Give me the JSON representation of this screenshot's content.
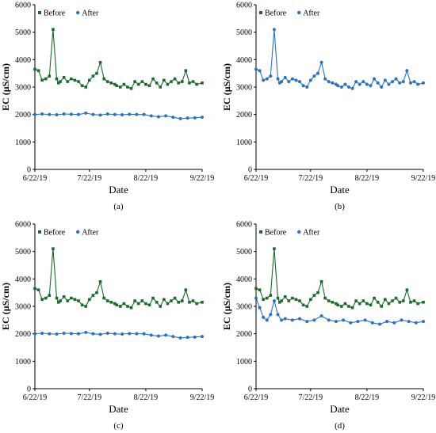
{
  "chart_data": [
    {
      "panel_label": "(a)",
      "type": "line",
      "xlabel": "Date",
      "ylabel": "EC (µS/cm)",
      "ylim": [
        0,
        6000
      ],
      "yticks": [
        0,
        1000,
        2000,
        3000,
        4000,
        5000,
        6000
      ],
      "xticks": [
        "6/22/19",
        "7/22/19",
        "8/22/19",
        "9/22/19"
      ],
      "xlim": [
        "6/22/19",
        "9/22/19"
      ],
      "legend_position": "top-left",
      "series": [
        {
          "name": "Before",
          "color": "#1a6b2c",
          "marker": "square",
          "x": [
            "6/22/19",
            "6/24/19",
            "6/26/19",
            "6/28/19",
            "6/30/19",
            "7/2/19",
            "7/4/19",
            "7/5/19",
            "7/6/19",
            "7/8/19",
            "7/10/19",
            "7/12/19",
            "7/14/19",
            "7/16/19",
            "7/18/19",
            "7/20/19",
            "7/22/19",
            "7/24/19",
            "7/26/19",
            "7/28/19",
            "7/30/19",
            "8/1/19",
            "8/3/19",
            "8/5/19",
            "8/6/19",
            "8/8/19",
            "8/10/19",
            "8/12/19",
            "8/14/19",
            "8/16/19",
            "8/18/19",
            "8/20/19",
            "8/22/19",
            "8/24/19",
            "8/26/19",
            "8/28/19",
            "8/30/19",
            "9/1/19",
            "9/3/19",
            "9/5/19",
            "9/7/19",
            "9/9/19",
            "9/11/19",
            "9/13/19",
            "9/15/19",
            "9/17/19",
            "9/19/19",
            "9/22/19"
          ],
          "y": [
            3650,
            3600,
            3250,
            3300,
            3400,
            5100,
            3300,
            3150,
            3200,
            3350,
            3200,
            3300,
            3250,
            3200,
            3050,
            3000,
            3250,
            3400,
            3500,
            3900,
            3300,
            3200,
            3150,
            3100,
            3050,
            3000,
            3100,
            3000,
            2950,
            3200,
            3100,
            3200,
            3100,
            3050,
            3300,
            3150,
            3000,
            3250,
            3100,
            3200,
            3300,
            3150,
            3200,
            3600,
            3150,
            3200,
            3100,
            3150
          ]
        },
        {
          "name": "After",
          "color": "#2a72c4",
          "marker": "circle",
          "x": [
            "6/22/19",
            "6/26/19",
            "6/30/19",
            "7/4/19",
            "7/8/19",
            "7/12/19",
            "7/16/19",
            "7/20/19",
            "7/24/19",
            "7/28/19",
            "8/1/19",
            "8/5/19",
            "8/9/19",
            "8/13/19",
            "8/17/19",
            "8/21/19",
            "8/25/19",
            "8/29/19",
            "9/2/19",
            "9/6/19",
            "9/10/19",
            "9/14/19",
            "9/18/19",
            "9/22/19"
          ],
          "y": [
            2000,
            2020,
            2000,
            1990,
            2020,
            2010,
            2000,
            2050,
            2000,
            1980,
            2020,
            2000,
            1990,
            2010,
            2000,
            2000,
            1950,
            1920,
            1950,
            1900,
            1850,
            1870,
            1880,
            1900
          ]
        }
      ]
    },
    {
      "panel_label": "(b)",
      "type": "line",
      "xlabel": "Date",
      "ylabel": "EC (µS/cm)",
      "ylim": [
        0,
        6000
      ],
      "yticks": [
        0,
        1000,
        2000,
        3000,
        4000,
        5000,
        6000
      ],
      "xticks": [
        "6/22/19",
        "7/22/19",
        "8/22/19",
        "9/22/19"
      ],
      "xlim": [
        "6/22/19",
        "9/22/19"
      ],
      "legend_position": "top-left",
      "series": [
        {
          "name": "Before",
          "color": "#1a6b2c",
          "marker": "square",
          "x": [],
          "y": []
        },
        {
          "name": "After",
          "color": "#2a72c4",
          "marker": "circle",
          "x": [
            "6/22/19",
            "6/24/19",
            "6/26/19",
            "6/28/19",
            "6/30/19",
            "7/2/19",
            "7/4/19",
            "7/5/19",
            "7/6/19",
            "7/8/19",
            "7/10/19",
            "7/12/19",
            "7/14/19",
            "7/16/19",
            "7/18/19",
            "7/20/19",
            "7/22/19",
            "7/24/19",
            "7/26/19",
            "7/28/19",
            "7/30/19",
            "8/1/19",
            "8/3/19",
            "8/5/19",
            "8/6/19",
            "8/8/19",
            "8/10/19",
            "8/12/19",
            "8/14/19",
            "8/16/19",
            "8/18/19",
            "8/20/19",
            "8/22/19",
            "8/24/19",
            "8/26/19",
            "8/28/19",
            "8/30/19",
            "9/1/19",
            "9/3/19",
            "9/5/19",
            "9/7/19",
            "9/9/19",
            "9/11/19",
            "9/13/19",
            "9/15/19",
            "9/17/19",
            "9/19/19",
            "9/22/19"
          ],
          "y": [
            3650,
            3600,
            3250,
            3300,
            3400,
            5100,
            3300,
            3150,
            3200,
            3350,
            3200,
            3300,
            3250,
            3200,
            3050,
            3000,
            3250,
            3400,
            3500,
            3900,
            3300,
            3200,
            3150,
            3100,
            3050,
            3000,
            3100,
            3000,
            2950,
            3200,
            3100,
            3200,
            3100,
            3050,
            3300,
            3150,
            3000,
            3250,
            3100,
            3200,
            3300,
            3150,
            3200,
            3600,
            3150,
            3200,
            3100,
            3150
          ]
        }
      ]
    },
    {
      "panel_label": "(c)",
      "type": "line",
      "xlabel": "Date",
      "ylabel": "EC (µS/cm)",
      "ylim": [
        0,
        6000
      ],
      "yticks": [
        0,
        1000,
        2000,
        3000,
        4000,
        5000,
        6000
      ],
      "xticks": [
        "6/22/19",
        "7/22/19",
        "8/22/19",
        "9/22/19"
      ],
      "xlim": [
        "6/22/19",
        "9/22/19"
      ],
      "legend_position": "top-left",
      "series": [
        {
          "name": "Before",
          "color": "#1a6b2c",
          "marker": "square",
          "x": [
            "6/22/19",
            "6/24/19",
            "6/26/19",
            "6/28/19",
            "6/30/19",
            "7/2/19",
            "7/4/19",
            "7/5/19",
            "7/6/19",
            "7/8/19",
            "7/10/19",
            "7/12/19",
            "7/14/19",
            "7/16/19",
            "7/18/19",
            "7/20/19",
            "7/22/19",
            "7/24/19",
            "7/26/19",
            "7/28/19",
            "7/30/19",
            "8/1/19",
            "8/3/19",
            "8/5/19",
            "8/6/19",
            "8/8/19",
            "8/10/19",
            "8/12/19",
            "8/14/19",
            "8/16/19",
            "8/18/19",
            "8/20/19",
            "8/22/19",
            "8/24/19",
            "8/26/19",
            "8/28/19",
            "8/30/19",
            "9/1/19",
            "9/3/19",
            "9/5/19",
            "9/7/19",
            "9/9/19",
            "9/11/19",
            "9/13/19",
            "9/15/19",
            "9/17/19",
            "9/19/19",
            "9/22/19"
          ],
          "y": [
            3650,
            3600,
            3250,
            3300,
            3400,
            5100,
            3300,
            3150,
            3200,
            3350,
            3200,
            3300,
            3250,
            3200,
            3050,
            3000,
            3250,
            3400,
            3500,
            3900,
            3300,
            3200,
            3150,
            3100,
            3050,
            3000,
            3100,
            3000,
            2950,
            3200,
            3100,
            3200,
            3100,
            3050,
            3300,
            3150,
            3000,
            3250,
            3100,
            3200,
            3300,
            3150,
            3200,
            3600,
            3150,
            3200,
            3100,
            3150
          ]
        },
        {
          "name": "After",
          "color": "#2a72c4",
          "marker": "circle",
          "x": [
            "6/22/19",
            "6/26/19",
            "6/30/19",
            "7/4/19",
            "7/8/19",
            "7/12/19",
            "7/16/19",
            "7/20/19",
            "7/24/19",
            "7/28/19",
            "8/1/19",
            "8/5/19",
            "8/9/19",
            "8/13/19",
            "8/17/19",
            "8/21/19",
            "8/25/19",
            "8/29/19",
            "9/2/19",
            "9/6/19",
            "9/10/19",
            "9/14/19",
            "9/18/19",
            "9/22/19"
          ],
          "y": [
            2000,
            2020,
            2000,
            1990,
            2020,
            2010,
            2000,
            2050,
            2000,
            1980,
            2020,
            2000,
            1990,
            2010,
            2000,
            2000,
            1950,
            1920,
            1950,
            1900,
            1850,
            1870,
            1880,
            1900
          ]
        }
      ]
    },
    {
      "panel_label": "(d)",
      "type": "line",
      "xlabel": "Date",
      "ylabel": "EC (µS/cm)",
      "ylim": [
        0,
        6000
      ],
      "yticks": [
        0,
        1000,
        2000,
        3000,
        4000,
        5000,
        6000
      ],
      "xticks": [
        "6/22/19",
        "7/22/19",
        "8/22/19",
        "9/22/19"
      ],
      "xlim": [
        "6/22/19",
        "9/22/19"
      ],
      "legend_position": "top-left",
      "series": [
        {
          "name": "Before",
          "color": "#1a6b2c",
          "marker": "square",
          "x": [
            "6/22/19",
            "6/24/19",
            "6/26/19",
            "6/28/19",
            "6/30/19",
            "7/2/19",
            "7/4/19",
            "7/5/19",
            "7/6/19",
            "7/8/19",
            "7/10/19",
            "7/12/19",
            "7/14/19",
            "7/16/19",
            "7/18/19",
            "7/20/19",
            "7/22/19",
            "7/24/19",
            "7/26/19",
            "7/28/19",
            "7/30/19",
            "8/1/19",
            "8/3/19",
            "8/5/19",
            "8/6/19",
            "8/8/19",
            "8/10/19",
            "8/12/19",
            "8/14/19",
            "8/16/19",
            "8/18/19",
            "8/20/19",
            "8/22/19",
            "8/24/19",
            "8/26/19",
            "8/28/19",
            "8/30/19",
            "9/1/19",
            "9/3/19",
            "9/5/19",
            "9/7/19",
            "9/9/19",
            "9/11/19",
            "9/13/19",
            "9/15/19",
            "9/17/19",
            "9/19/19",
            "9/22/19"
          ],
          "y": [
            3650,
            3600,
            3250,
            3300,
            3400,
            5100,
            3300,
            3150,
            3200,
            3350,
            3200,
            3300,
            3250,
            3200,
            3050,
            3000,
            3250,
            3400,
            3500,
            3900,
            3300,
            3200,
            3150,
            3100,
            3050,
            3000,
            3100,
            3000,
            2950,
            3200,
            3100,
            3200,
            3100,
            3050,
            3300,
            3150,
            3000,
            3250,
            3100,
            3200,
            3300,
            3150,
            3200,
            3600,
            3150,
            3200,
            3100,
            3150
          ]
        },
        {
          "name": "After",
          "color": "#2a72c4",
          "marker": "circle",
          "x": [
            "6/22/19",
            "6/24/19",
            "6/26/19",
            "6/28/19",
            "6/30/19",
            "7/2/19",
            "7/4/19",
            "7/6/19",
            "7/8/19",
            "7/12/19",
            "7/16/19",
            "7/20/19",
            "7/24/19",
            "7/28/19",
            "8/1/19",
            "8/5/19",
            "8/9/19",
            "8/13/19",
            "8/17/19",
            "8/21/19",
            "8/25/19",
            "8/29/19",
            "9/2/19",
            "9/6/19",
            "9/10/19",
            "9/14/19",
            "9/18/19",
            "9/22/19"
          ],
          "y": [
            3300,
            2950,
            2600,
            2500,
            2700,
            3200,
            2700,
            2500,
            2550,
            2500,
            2550,
            2450,
            2500,
            2650,
            2500,
            2450,
            2500,
            2400,
            2450,
            2500,
            2400,
            2350,
            2450,
            2400,
            2500,
            2450,
            2400,
            2450
          ]
        }
      ]
    }
  ]
}
